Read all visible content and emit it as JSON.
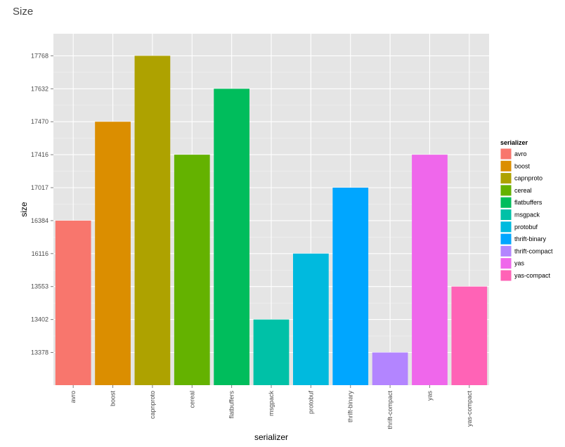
{
  "chart_data": {
    "type": "bar",
    "title": "Size",
    "xlabel": "serializer",
    "ylabel": "size",
    "categories": [
      "avro",
      "boost",
      "capnproto",
      "cereal",
      "flatbuffers",
      "msgpack",
      "protobuf",
      "thrift-binary",
      "thrift-compact",
      "yas",
      "yas-compact"
    ],
    "values": [
      16384,
      17470,
      17768,
      17416,
      17632,
      13402,
      16116,
      17017,
      13378,
      17416,
      13553
    ],
    "y_tick_labels": [
      "13378",
      "13402",
      "13553",
      "16116",
      "16384",
      "17017",
      "17416",
      "17470",
      "17632",
      "17768"
    ],
    "y_axis_scale": "discrete",
    "colors": [
      "#F8766D",
      "#DB8E00",
      "#AEA200",
      "#64B200",
      "#00BD5C",
      "#00C1A7",
      "#00BADE",
      "#00A6FF",
      "#B385FF",
      "#EF67EB",
      "#FF63B6"
    ],
    "legend": {
      "title": "serializer",
      "position": "right",
      "entries": [
        "avro",
        "boost",
        "capnproto",
        "cereal",
        "flatbuffers",
        "msgpack",
        "protobuf",
        "thrift-binary",
        "thrift-compact",
        "yas",
        "yas-compact"
      ]
    },
    "grid": true,
    "panel_background": "#E5E5E5",
    "grid_color": "#FFFFFF"
  }
}
